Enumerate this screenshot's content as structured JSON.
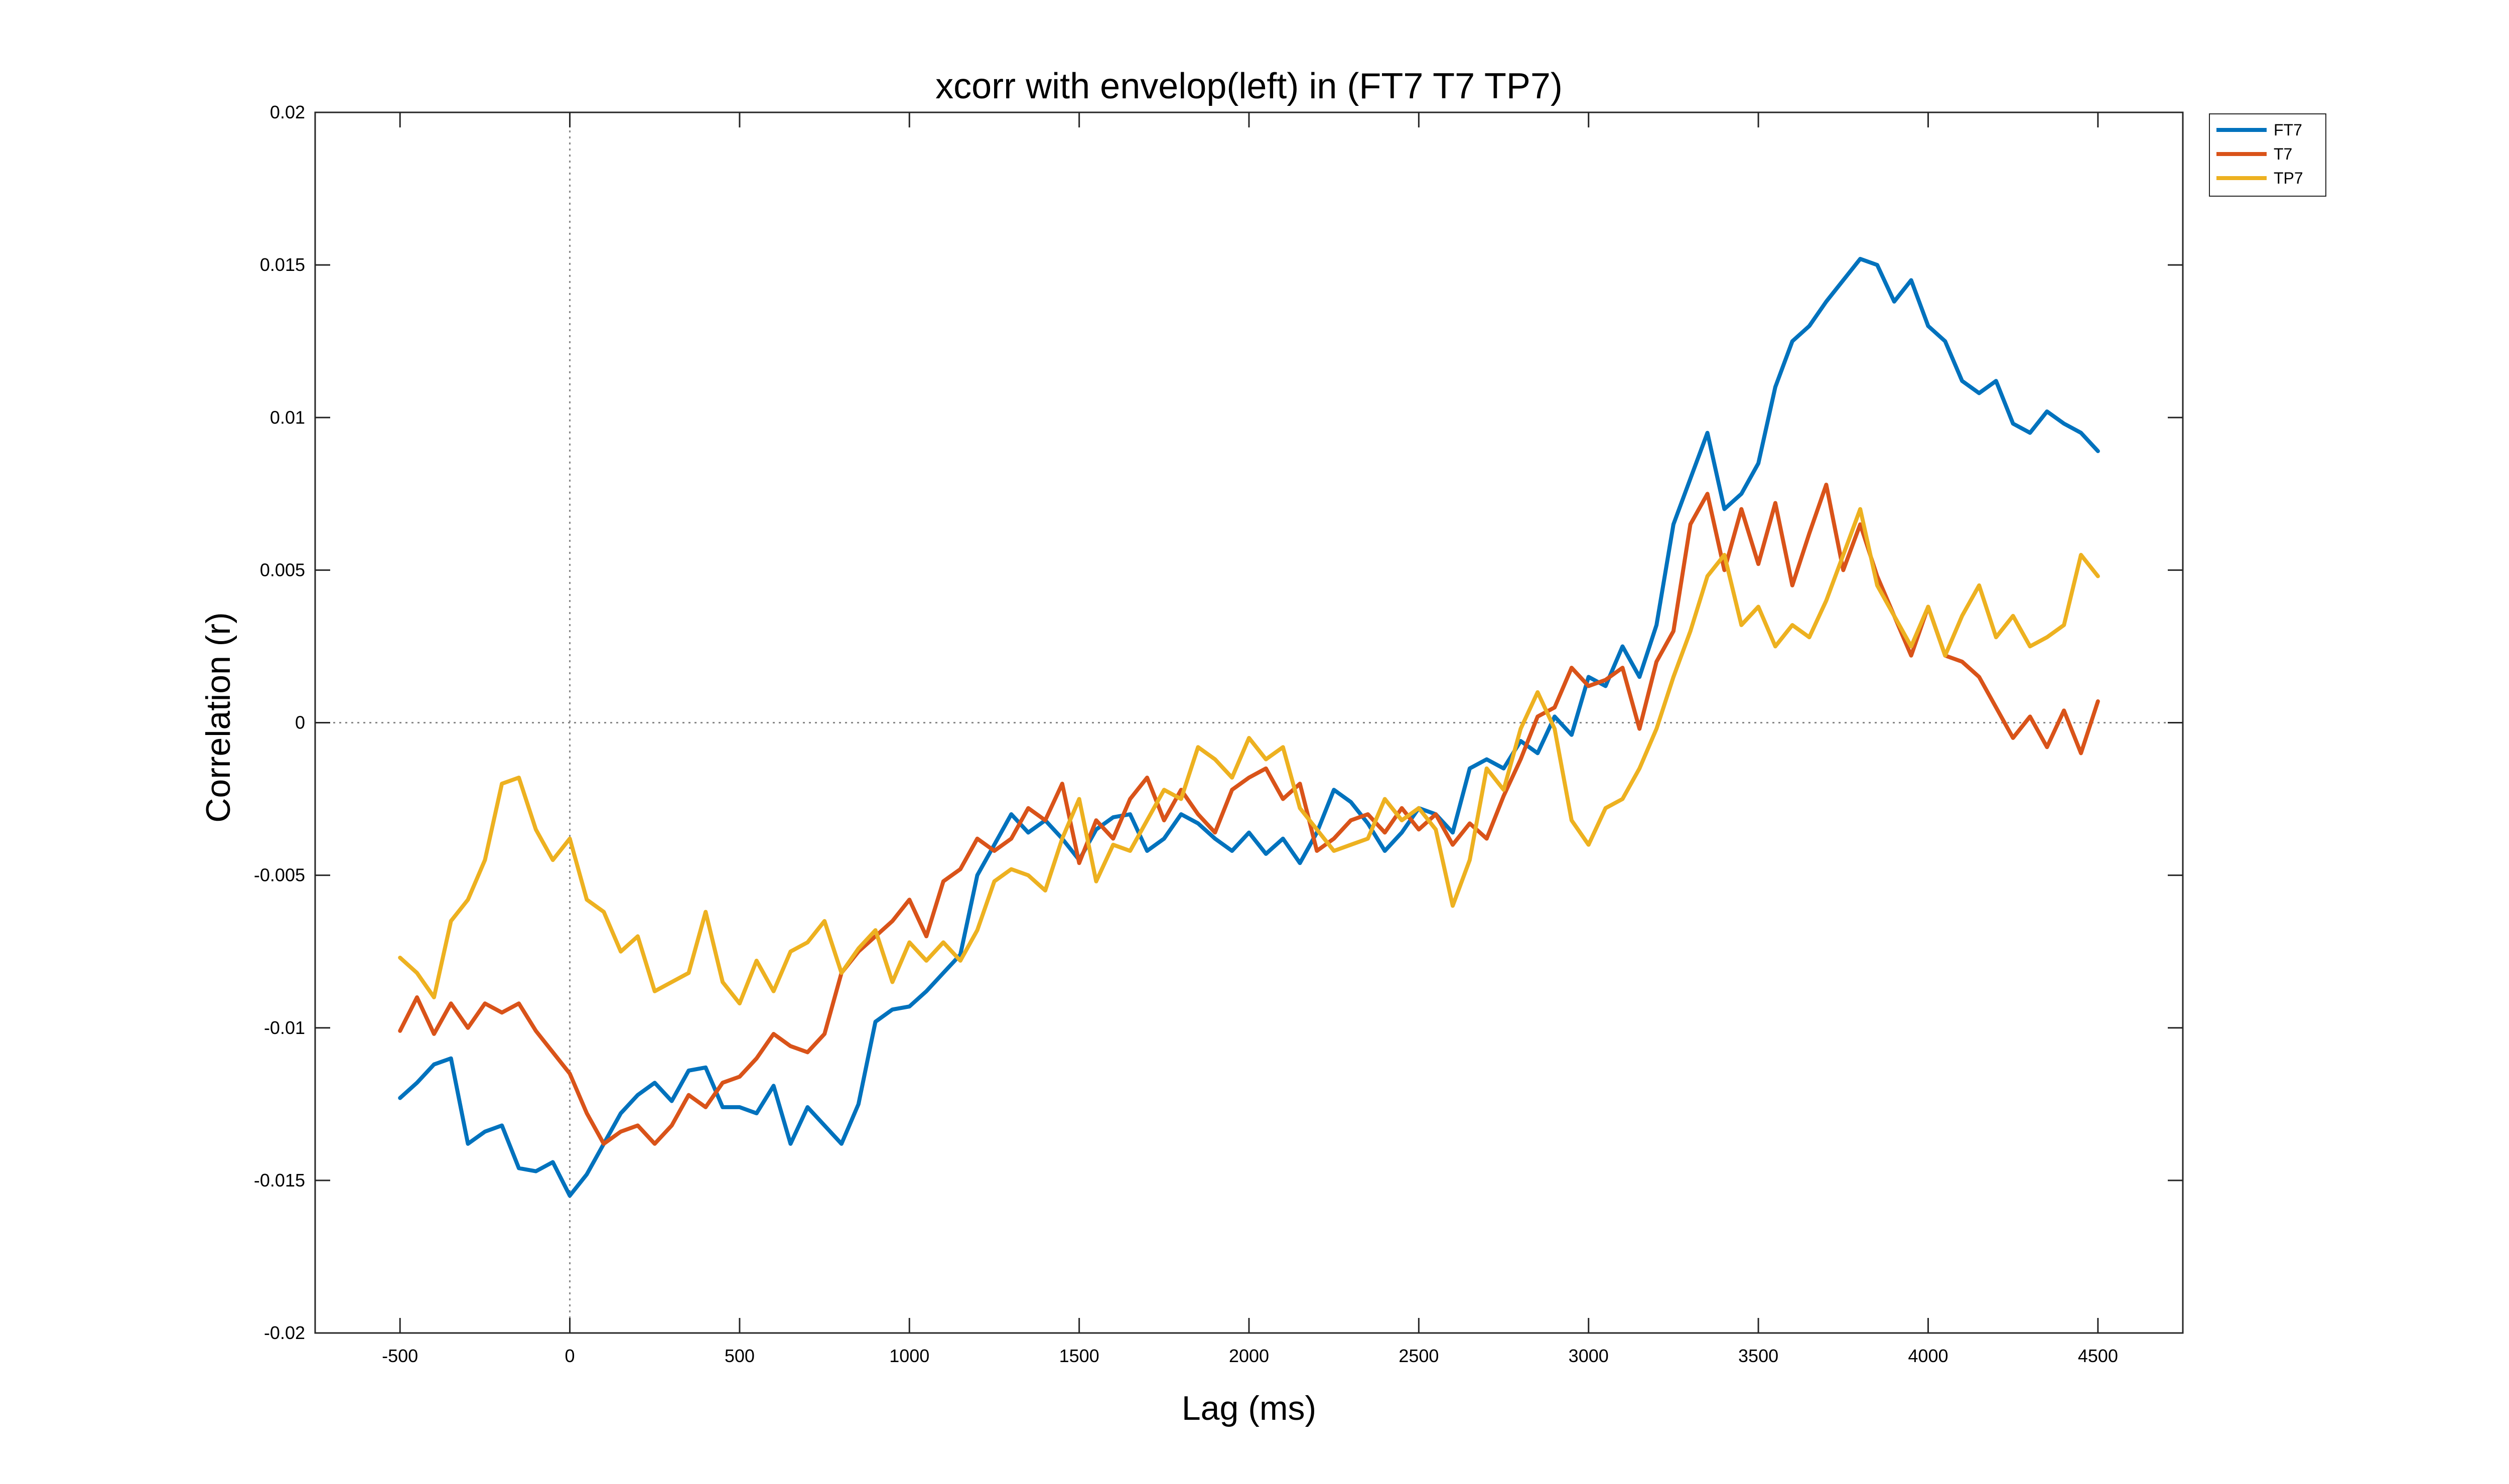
{
  "chart_data": {
    "type": "line",
    "title": "xcorr with envelop(left) in (FT7 T7 TP7)",
    "xlabel": "Lag (ms)",
    "ylabel": "Correlation (r)",
    "xlim": [
      -750,
      4750
    ],
    "ylim": [
      -0.02,
      0.02
    ],
    "x_ticks": [
      -500,
      0,
      500,
      1000,
      1500,
      2000,
      2500,
      3000,
      3500,
      4000,
      4500
    ],
    "y_ticks": [
      -0.02,
      -0.015,
      -0.01,
      -0.005,
      0,
      0.005,
      0.01,
      0.015,
      0.02
    ],
    "x_tick_labels": [
      "-500",
      "0",
      "500",
      "1000",
      "1500",
      "2000",
      "2500",
      "3000",
      "3500",
      "4000",
      "4500"
    ],
    "y_tick_labels": [
      "-0.02",
      "-0.015",
      "-0.01",
      "-0.005",
      "0",
      "0.005",
      "0.01",
      "0.015",
      "0.02"
    ],
    "grid": false,
    "reference_lines": {
      "x": 0,
      "y": 0,
      "style": "dotted"
    },
    "legend_position": "outside-top-right",
    "x": [
      -500,
      -450,
      -400,
      -350,
      -300,
      -250,
      -200,
      -150,
      -100,
      -50,
      0,
      50,
      100,
      150,
      200,
      250,
      300,
      350,
      400,
      450,
      500,
      550,
      600,
      650,
      700,
      750,
      800,
      850,
      900,
      950,
      1000,
      1050,
      1100,
      1150,
      1200,
      1250,
      1300,
      1350,
      1400,
      1450,
      1500,
      1550,
      1600,
      1650,
      1700,
      1750,
      1800,
      1850,
      1900,
      1950,
      2000,
      2050,
      2100,
      2150,
      2200,
      2250,
      2300,
      2350,
      2400,
      2450,
      2500,
      2550,
      2600,
      2650,
      2700,
      2750,
      2800,
      2850,
      2900,
      2950,
      3000,
      3050,
      3100,
      3150,
      3200,
      3250,
      3300,
      3350,
      3400,
      3450,
      3500,
      3550,
      3600,
      3650,
      3700,
      3750,
      3800,
      3850,
      3900,
      3950,
      4000,
      4050,
      4100,
      4150,
      4200,
      4250,
      4300,
      4350,
      4400,
      4450,
      4500
    ],
    "series": [
      {
        "name": "FT7",
        "color": "#0072BD",
        "values": [
          -0.0123,
          -0.0118,
          -0.0112,
          -0.011,
          -0.0138,
          -0.0134,
          -0.0132,
          -0.0146,
          -0.0147,
          -0.0144,
          -0.0155,
          -0.0148,
          -0.0138,
          -0.0128,
          -0.0122,
          -0.0118,
          -0.0124,
          -0.0114,
          -0.0113,
          -0.0126,
          -0.0126,
          -0.0128,
          -0.0119,
          -0.0138,
          -0.0126,
          -0.0132,
          -0.0138,
          -0.0125,
          -0.0098,
          -0.0094,
          -0.0093,
          -0.0088,
          -0.0082,
          -0.0076,
          -0.005,
          -0.004,
          -0.003,
          -0.0036,
          -0.0032,
          -0.0038,
          -0.0045,
          -0.0035,
          -0.0031,
          -0.003,
          -0.0042,
          -0.0038,
          -0.003,
          -0.0033,
          -0.0038,
          -0.0042,
          -0.0036,
          -0.0043,
          -0.0038,
          -0.0046,
          -0.0036,
          -0.0022,
          -0.0026,
          -0.0033,
          -0.0042,
          -0.0036,
          -0.0028,
          -0.003,
          -0.0036,
          -0.0015,
          -0.0012,
          -0.0015,
          -0.0006,
          -0.001,
          0.0002,
          -0.0004,
          0.0015,
          0.0012,
          0.0025,
          0.0015,
          0.0032,
          0.0065,
          0.008,
          0.0095,
          0.007,
          0.0075,
          0.0085,
          0.011,
          0.0125,
          0.013,
          0.0138,
          0.0145,
          0.0152,
          0.015,
          0.0138,
          0.0145,
          0.013,
          0.0125,
          0.0112,
          0.0108,
          0.0112,
          0.0098,
          0.0095,
          0.0102,
          0.0098,
          0.0095,
          0.0089
        ]
      },
      {
        "name": "T7",
        "color": "#D95319",
        "values": [
          -0.0101,
          -0.009,
          -0.0102,
          -0.0092,
          -0.01,
          -0.0092,
          -0.0095,
          -0.0092,
          -0.0101,
          -0.0108,
          -0.0115,
          -0.0128,
          -0.0138,
          -0.0134,
          -0.0132,
          -0.0138,
          -0.0132,
          -0.0122,
          -0.0126,
          -0.0118,
          -0.0116,
          -0.011,
          -0.0102,
          -0.0106,
          -0.0108,
          -0.0102,
          -0.0082,
          -0.0075,
          -0.007,
          -0.0065,
          -0.0058,
          -0.007,
          -0.0052,
          -0.0048,
          -0.0038,
          -0.0042,
          -0.0038,
          -0.0028,
          -0.0032,
          -0.002,
          -0.0046,
          -0.0032,
          -0.0038,
          -0.0025,
          -0.0018,
          -0.0032,
          -0.0022,
          -0.003,
          -0.0036,
          -0.0022,
          -0.0018,
          -0.0015,
          -0.0025,
          -0.002,
          -0.0042,
          -0.0038,
          -0.0032,
          -0.003,
          -0.0036,
          -0.0028,
          -0.0035,
          -0.003,
          -0.004,
          -0.0033,
          -0.0038,
          -0.0024,
          -0.0012,
          0.0002,
          0.0005,
          0.0018,
          0.0012,
          0.0014,
          0.0018,
          -0.0002,
          0.002,
          0.003,
          0.0065,
          0.0075,
          0.005,
          0.007,
          0.0052,
          0.0072,
          0.0045,
          0.0062,
          0.0078,
          0.005,
          0.0065,
          0.0048,
          0.0035,
          0.0022,
          0.0038,
          0.0022,
          0.002,
          0.0015,
          0.0005,
          -0.0005,
          0.0002,
          -0.0008,
          0.0004,
          -0.001,
          0.0007
        ]
      },
      {
        "name": "TP7",
        "color": "#EDB120",
        "values": [
          -0.0077,
          -0.0082,
          -0.009,
          -0.0065,
          -0.0058,
          -0.0045,
          -0.002,
          -0.0018,
          -0.0035,
          -0.0045,
          -0.0038,
          -0.0058,
          -0.0062,
          -0.0075,
          -0.007,
          -0.0088,
          -0.0085,
          -0.0082,
          -0.0062,
          -0.0085,
          -0.0092,
          -0.0078,
          -0.0088,
          -0.0075,
          -0.0072,
          -0.0065,
          -0.0082,
          -0.0074,
          -0.0068,
          -0.0085,
          -0.0072,
          -0.0078,
          -0.0072,
          -0.0078,
          -0.0068,
          -0.0052,
          -0.0048,
          -0.005,
          -0.0055,
          -0.0038,
          -0.0025,
          -0.0052,
          -0.004,
          -0.0042,
          -0.0032,
          -0.0022,
          -0.0025,
          -0.0008,
          -0.0012,
          -0.0018,
          -0.0005,
          -0.0012,
          -0.0008,
          -0.0028,
          -0.0035,
          -0.0042,
          -0.004,
          -0.0038,
          -0.0025,
          -0.0032,
          -0.0028,
          -0.0035,
          -0.006,
          -0.0045,
          -0.0015,
          -0.0022,
          -0.0002,
          0.001,
          -0.0002,
          -0.0032,
          -0.004,
          -0.0028,
          -0.0025,
          -0.0015,
          -0.0002,
          0.0015,
          0.003,
          0.0048,
          0.0055,
          0.0032,
          0.0038,
          0.0025,
          0.0032,
          0.0028,
          0.004,
          0.0055,
          0.007,
          0.0045,
          0.0035,
          0.0025,
          0.0038,
          0.0022,
          0.0035,
          0.0045,
          0.0028,
          0.0035,
          0.0025,
          0.0028,
          0.0032,
          0.0055,
          0.0048
        ]
      }
    ]
  }
}
